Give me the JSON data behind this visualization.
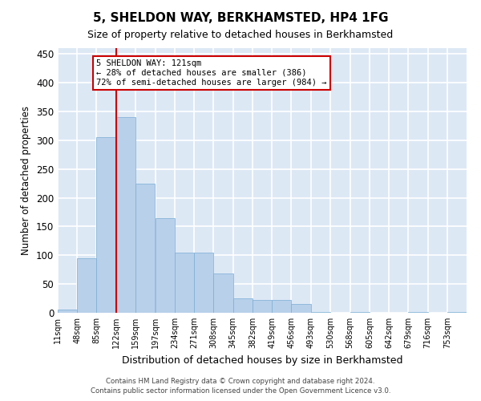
{
  "title": "5, SHELDON WAY, BERKHAMSTED, HP4 1FG",
  "subtitle": "Size of property relative to detached houses in Berkhamsted",
  "xlabel": "Distribution of detached houses by size in Berkhamsted",
  "ylabel": "Number of detached properties",
  "bar_color": "#b8d0ea",
  "bar_edge_color": "#7aadd4",
  "background_color": "#dde8f5",
  "grid_color": "#ffffff",
  "property_line_color": "#cc0000",
  "property_value": 121,
  "property_label": "5 SHELDON WAY: 121sqm",
  "pct_smaller": "28% of detached houses are smaller (386)",
  "pct_larger": "72% of semi-detached houses are larger (984)",
  "annotation_box_color": "#ffffff",
  "annotation_box_edge_color": "#cc0000",
  "bins": [
    11,
    48,
    85,
    122,
    159,
    197,
    234,
    271,
    308,
    345,
    382,
    419,
    456,
    493,
    530,
    568,
    605,
    642,
    679,
    716,
    753
  ],
  "counts": [
    5,
    95,
    305,
    340,
    225,
    165,
    105,
    105,
    68,
    25,
    22,
    22,
    15,
    2,
    0,
    2,
    0,
    0,
    2,
    0,
    2
  ],
  "ylim": [
    0,
    460
  ],
  "yticks": [
    0,
    50,
    100,
    150,
    200,
    250,
    300,
    350,
    400,
    450
  ],
  "footer_line1": "Contains HM Land Registry data © Crown copyright and database right 2024.",
  "footer_line2": "Contains public sector information licensed under the Open Government Licence v3.0."
}
